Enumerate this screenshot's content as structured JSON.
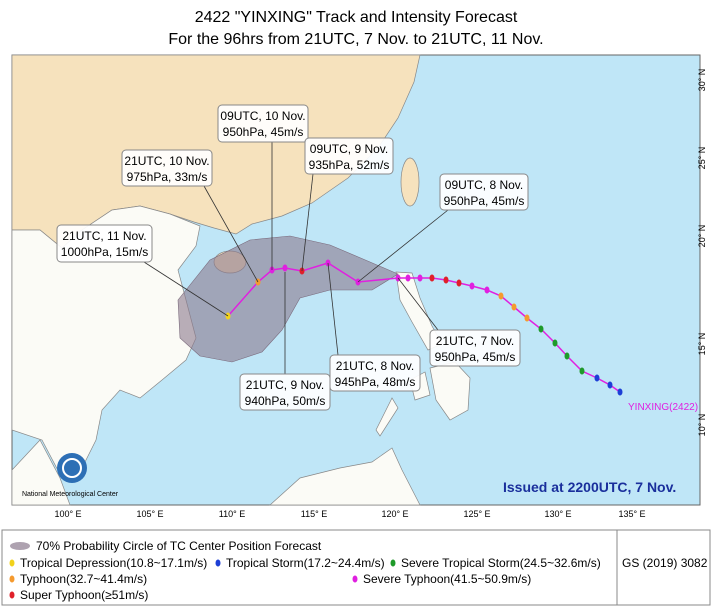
{
  "title": "2422 \"YINXING\" Track and Intensity Forecast",
  "subtitle": "For the 96hrs from 21UTC, 7 Nov. to 21UTC, 11 Nov.",
  "forecast_labels": [
    {
      "time": "09UTC, 10 Nov.",
      "detail": "950hPa, 45m/s"
    },
    {
      "time": "21UTC, 10 Nov.",
      "detail": "975hPa, 33m/s"
    },
    {
      "time": "09UTC, 9 Nov.",
      "detail": "935hPa, 52m/s"
    },
    {
      "time": "09UTC, 8 Nov.",
      "detail": "950hPa, 45m/s"
    },
    {
      "time": "21UTC, 11 Nov.",
      "detail": "1000hPa, 15m/s"
    },
    {
      "time": "21UTC, 9 Nov.",
      "detail": "940hPa, 50m/s"
    },
    {
      "time": "21UTC, 8 Nov.",
      "detail": "945hPa, 48m/s"
    },
    {
      "time": "21UTC, 7 Nov.",
      "detail": "950hPa, 45m/s"
    }
  ],
  "longitude_labels": [
    "100° E",
    "105° E",
    "110° E",
    "115° E",
    "120° E",
    "125° E",
    "130° E",
    "135° E"
  ],
  "latitude_labels": [
    "30° N",
    "25° N",
    "20° N",
    "15° N",
    "10° N"
  ],
  "storm_label": "YINXING(2422)",
  "issued": "Issued at 2200UTC, 7 Nov.",
  "agency": "National Meteorological Center",
  "legend": {
    "cone": "70% Probability Circle of TC Center Position Forecast",
    "items": [
      "Tropical Depression(10.8~17.1m/s)",
      "Tropical Storm(17.2~24.4m/s)",
      "Severe Tropical Storm(24.5~32.6m/s)",
      "Typhoon(32.7~41.4m/s)",
      "Severe Typhoon(41.5~50.9m/s)",
      "Super Typhoon(≥51m/s)"
    ]
  },
  "map_approval": "GS (2019) 3082"
}
